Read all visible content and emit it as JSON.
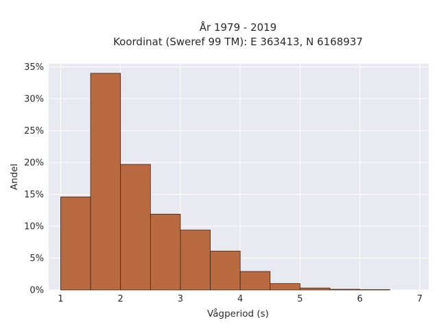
{
  "chart_data": {
    "type": "bar",
    "title_line1": "År 1979 - 2019",
    "title_line2": "Koordinat (Sweref 99 TM): E 363413, N 6168937",
    "xlabel": "Vågperiod (s)",
    "ylabel": "Andel",
    "bin_edges": [
      1.0,
      1.5,
      2.0,
      2.5,
      3.0,
      3.5,
      4.0,
      4.5,
      5.0,
      5.5,
      6.0,
      6.5
    ],
    "values": [
      14.6,
      34.0,
      19.7,
      11.9,
      9.4,
      6.1,
      2.9,
      1.0,
      0.3,
      0.1,
      0.05
    ],
    "xlim": [
      0.8,
      7.15
    ],
    "ylim": [
      0,
      35.5
    ],
    "xticks": [
      1,
      2,
      3,
      4,
      5,
      6,
      7
    ],
    "xtick_labels": [
      "1",
      "2",
      "3",
      "4",
      "5",
      "6",
      "7"
    ],
    "yticks": [
      0,
      5,
      10,
      15,
      20,
      25,
      30,
      35
    ],
    "ytick_labels": [
      "0%",
      "5%",
      "10%",
      "15%",
      "20%",
      "25%",
      "30%",
      "35%"
    ],
    "grid": true,
    "colors": {
      "bar_fill": "#b96a40",
      "bar_edge": "#3a2416",
      "plot_bg": "#e9e9f1",
      "grid": "#ffffff"
    }
  }
}
